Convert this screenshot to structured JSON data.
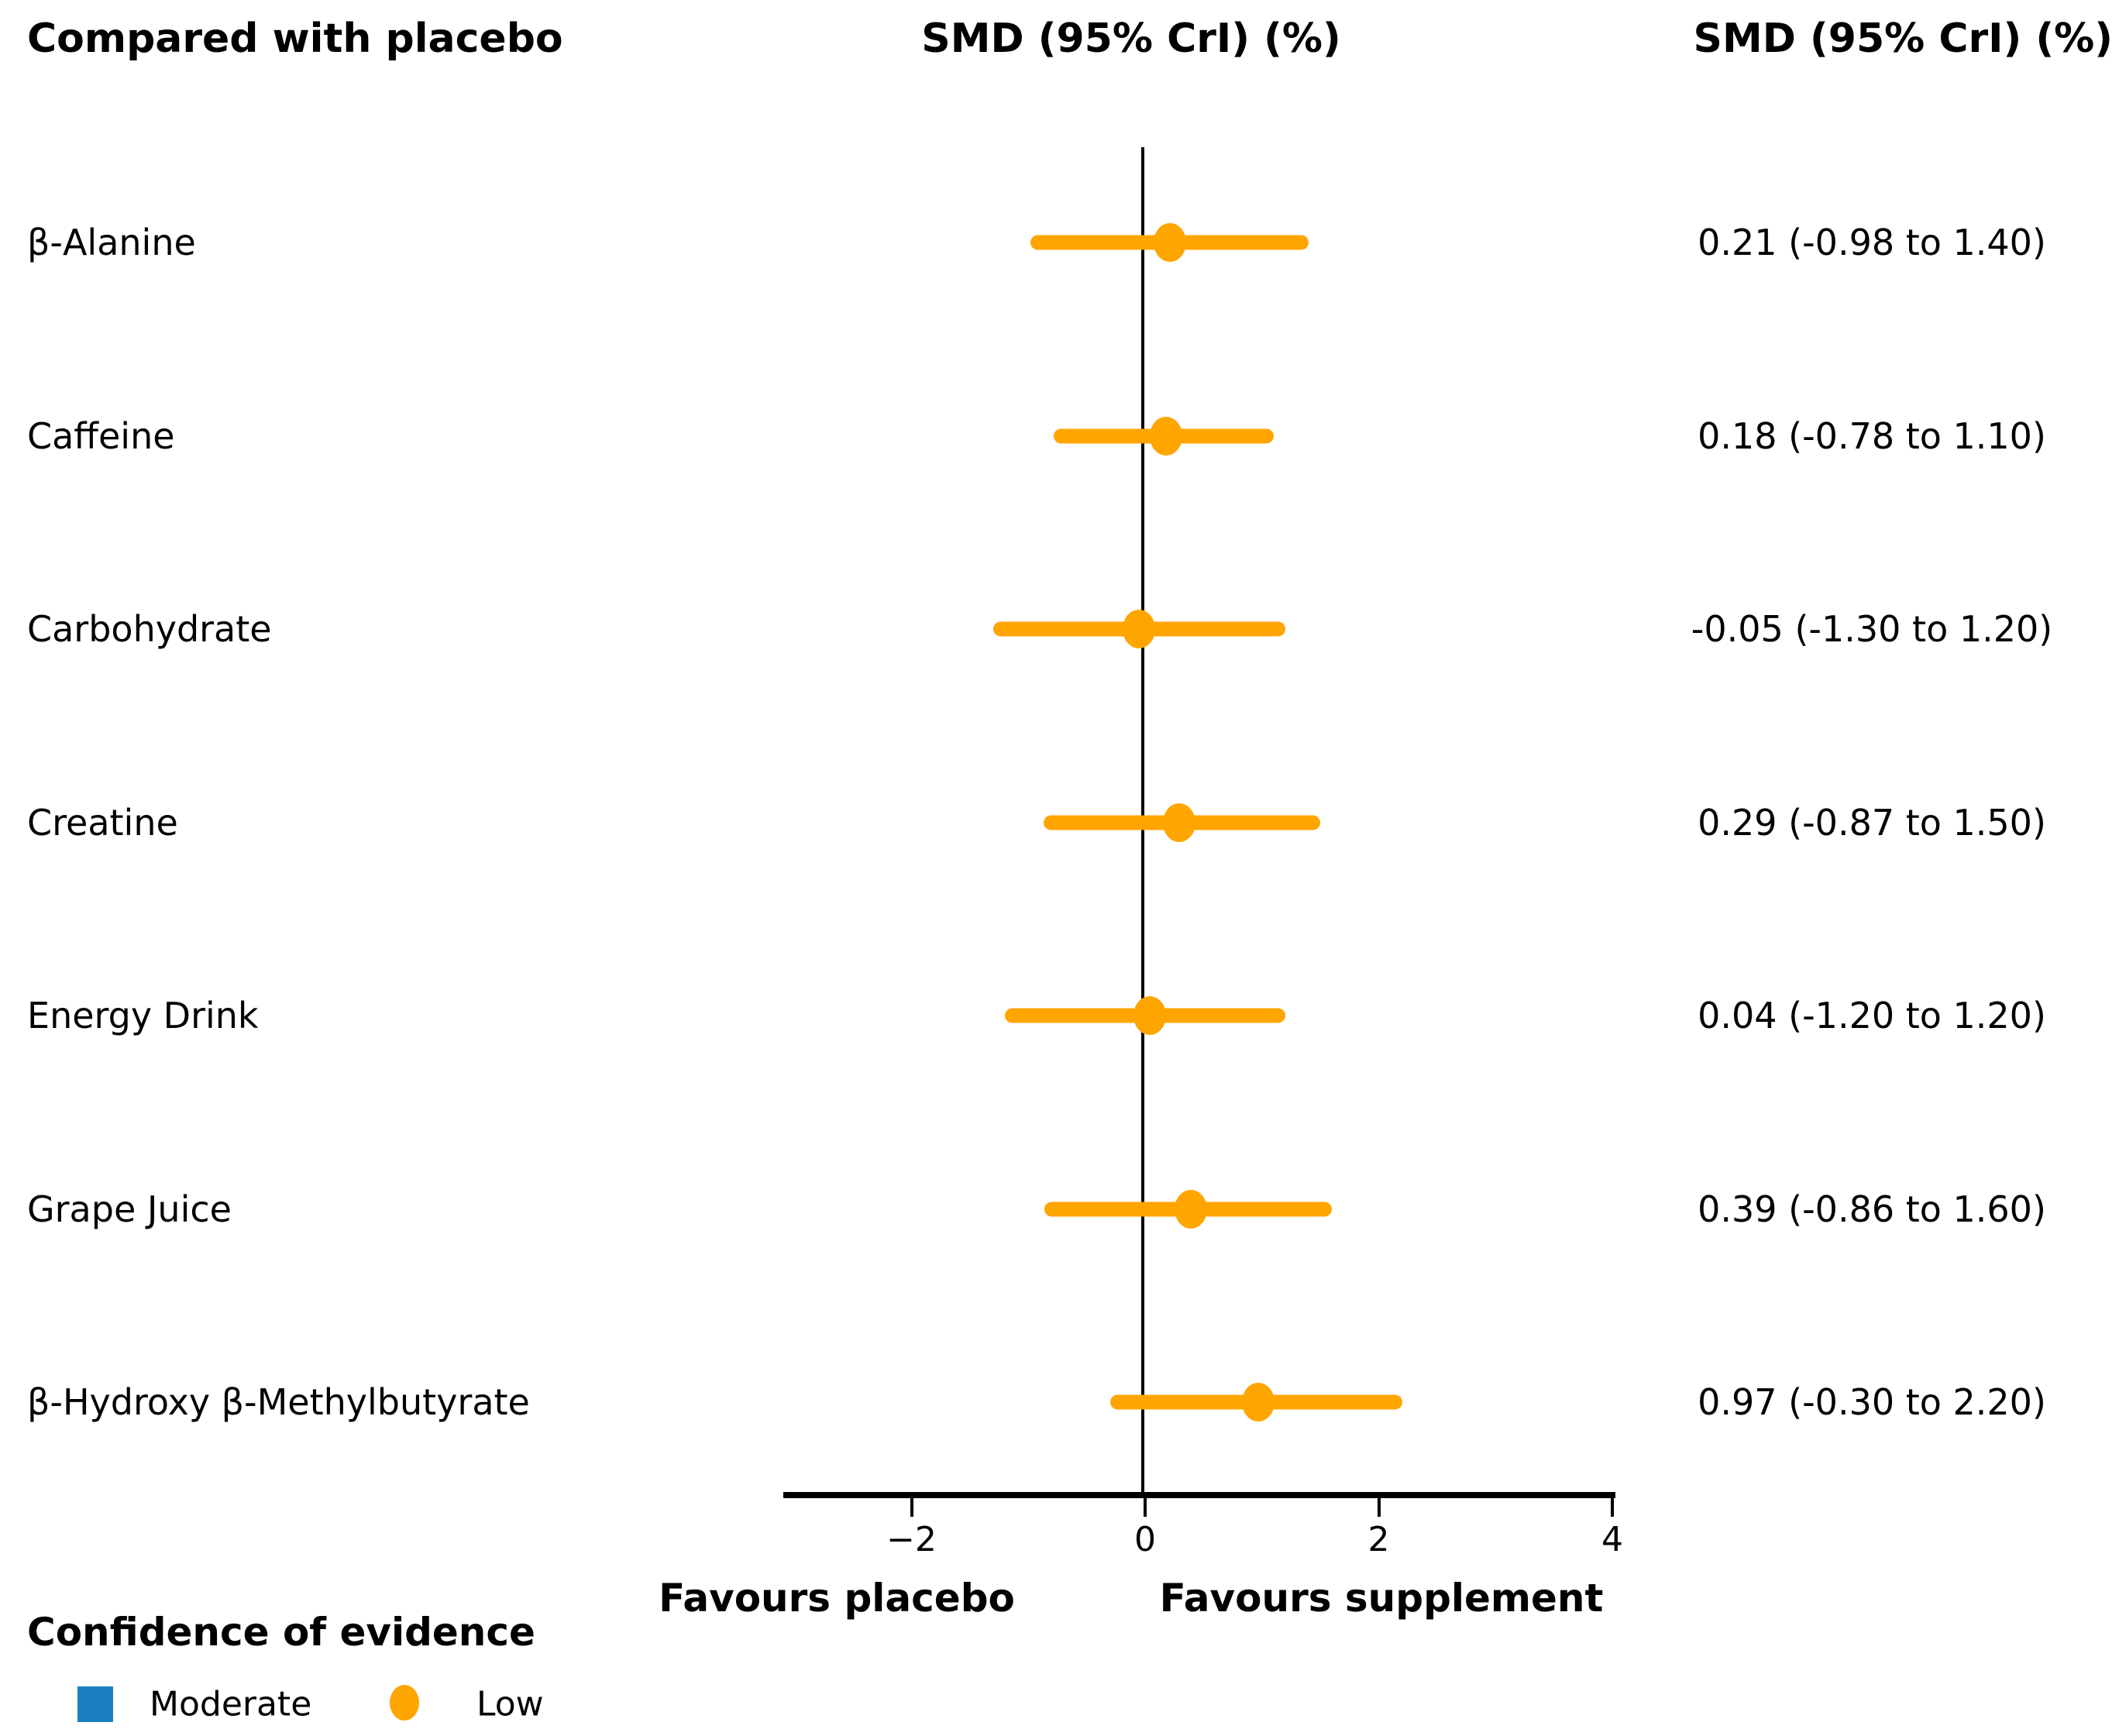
{
  "headers": {
    "left": "Compared with placebo",
    "middle": "SMD (95% CrI) (%)",
    "right": "SMD (95% CrI) (%)"
  },
  "chart_data": {
    "type": "forest",
    "effect_measure": "SMD (95% CrI) (%)",
    "comparator": "placebo",
    "x_axis": {
      "ticks": [
        -2,
        0,
        2,
        4
      ],
      "tick_labels": [
        "−2",
        "0",
        "2",
        "4"
      ],
      "range": [
        -3.1,
        4.0
      ],
      "reference_line": 0
    },
    "rows": [
      {
        "label": "β-Alanine",
        "smd": 0.21,
        "ci_low": -0.98,
        "ci_high": 1.4,
        "text": "0.21 (-0.98 to 1.40)",
        "confidence": "Low"
      },
      {
        "label": "Caffeine",
        "smd": 0.18,
        "ci_low": -0.78,
        "ci_high": 1.1,
        "text": "0.18 (-0.78 to 1.10)",
        "confidence": "Low"
      },
      {
        "label": "Carbohydrate",
        "smd": -0.05,
        "ci_low": -1.3,
        "ci_high": 1.2,
        "text": "-0.05 (-1.30 to 1.20)",
        "confidence": "Low"
      },
      {
        "label": "Creatine",
        "smd": 0.29,
        "ci_low": -0.87,
        "ci_high": 1.5,
        "text": "0.29 (-0.87 to 1.50)",
        "confidence": "Low"
      },
      {
        "label": "Energy Drink",
        "smd": 0.04,
        "ci_low": -1.2,
        "ci_high": 1.2,
        "text": "0.04 (-1.20 to 1.20)",
        "confidence": "Low"
      },
      {
        "label": "Grape Juice",
        "smd": 0.39,
        "ci_low": -0.86,
        "ci_high": 1.6,
        "text": "0.39 (-0.86 to 1.60)",
        "confidence": "Low"
      },
      {
        "label": "β-Hydroxy β-Methylbutyrate",
        "smd": 0.97,
        "ci_low": -0.3,
        "ci_high": 2.2,
        "text": "0.97 (-0.30 to 2.20)",
        "confidence": "Low"
      }
    ],
    "footer": {
      "left": "Favours placebo",
      "right": "Favours supplement"
    },
    "colors": {
      "low": "#FFA500",
      "moderate": "#1A80C2",
      "axis": "#000000"
    }
  },
  "legend": {
    "title": "Confidence of evidence",
    "items": [
      {
        "label": "Moderate",
        "marker": "square",
        "color": "#1A80C2"
      },
      {
        "label": "Low",
        "marker": "circle",
        "color": "#FFA500"
      }
    ]
  }
}
